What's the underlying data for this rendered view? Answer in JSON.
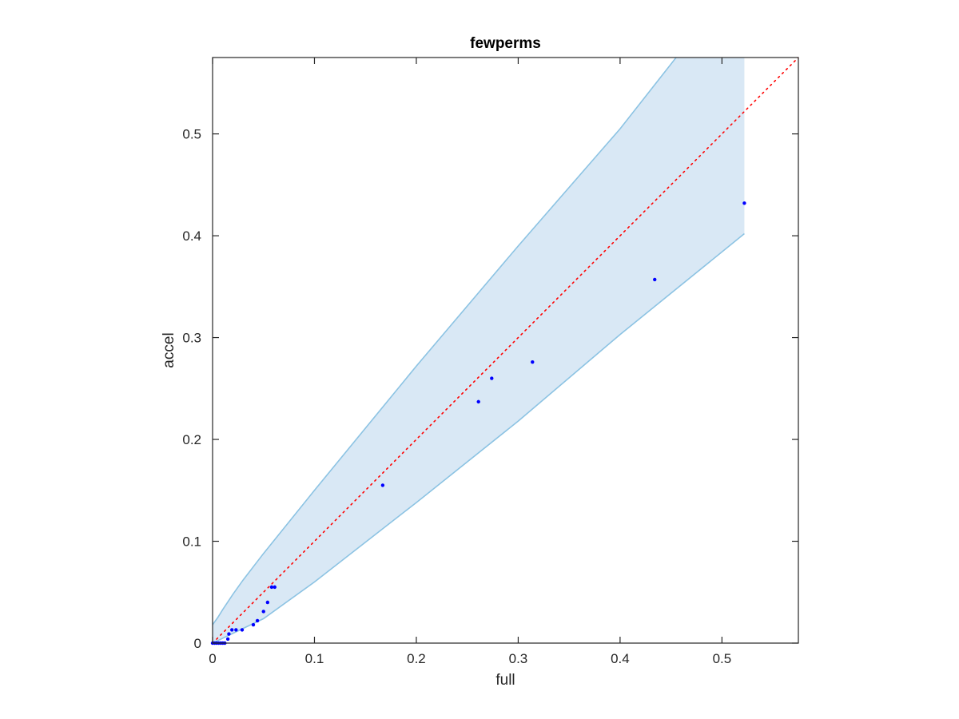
{
  "chart_data": {
    "type": "scatter",
    "title": "fewperms",
    "xlabel": "full",
    "ylabel": "accel",
    "xlim": [
      0,
      0.575
    ],
    "ylim": [
      0,
      0.575
    ],
    "xticks": [
      0,
      0.1,
      0.2,
      0.3,
      0.4,
      0.5
    ],
    "xtick_labels": [
      "0",
      "0.1",
      "0.2",
      "0.3",
      "0.4",
      "0.5"
    ],
    "yticks": [
      0,
      0.1,
      0.2,
      0.3,
      0.4,
      0.5
    ],
    "ytick_labels": [
      "0",
      "0.1",
      "0.2",
      "0.3",
      "0.4",
      "0.5"
    ],
    "grid": false,
    "legend": "none",
    "series": [
      {
        "kind": "scatter",
        "color": "#0000ff",
        "points": [
          [
            0,
            0
          ],
          [
            0.002,
            0
          ],
          [
            0.004,
            0
          ],
          [
            0.006,
            0
          ],
          [
            0.008,
            0
          ],
          [
            0.01,
            0
          ],
          [
            0.012,
            0
          ],
          [
            0.015,
            0.004
          ],
          [
            0.016,
            0.009
          ],
          [
            0.019,
            0.013
          ],
          [
            0.023,
            0.013
          ],
          [
            0.029,
            0.013
          ],
          [
            0.04,
            0.018
          ],
          [
            0.044,
            0.022
          ],
          [
            0.05,
            0.031
          ],
          [
            0.054,
            0.04
          ],
          [
            0.058,
            0.055
          ],
          [
            0.061,
            0.055
          ],
          [
            0.167,
            0.155
          ],
          [
            0.261,
            0.237
          ],
          [
            0.274,
            0.26
          ],
          [
            0.314,
            0.276
          ],
          [
            0.434,
            0.357
          ],
          [
            0.522,
            0.432
          ]
        ]
      },
      {
        "kind": "reference-line",
        "style": "dotted",
        "color": "#ff0000",
        "points": [
          [
            0,
            0
          ],
          [
            0.575,
            0.575
          ]
        ]
      },
      {
        "kind": "band",
        "fill_color": "#d9e8f5",
        "edge_color": "#8cc3e3",
        "upper": [
          [
            0,
            0.018
          ],
          [
            0.005,
            0.025
          ],
          [
            0.01,
            0.033
          ],
          [
            0.02,
            0.048
          ],
          [
            0.03,
            0.062
          ],
          [
            0.05,
            0.088
          ],
          [
            0.1,
            0.15
          ],
          [
            0.2,
            0.272
          ],
          [
            0.3,
            0.39
          ],
          [
            0.4,
            0.505
          ],
          [
            0.455,
            0.575
          ]
        ],
        "lower": [
          [
            0,
            0
          ],
          [
            0.05,
            0.024
          ],
          [
            0.1,
            0.06
          ],
          [
            0.2,
            0.138
          ],
          [
            0.3,
            0.218
          ],
          [
            0.4,
            0.303
          ],
          [
            0.522,
            0.402
          ]
        ],
        "right_edge_x": 0.522
      }
    ]
  }
}
